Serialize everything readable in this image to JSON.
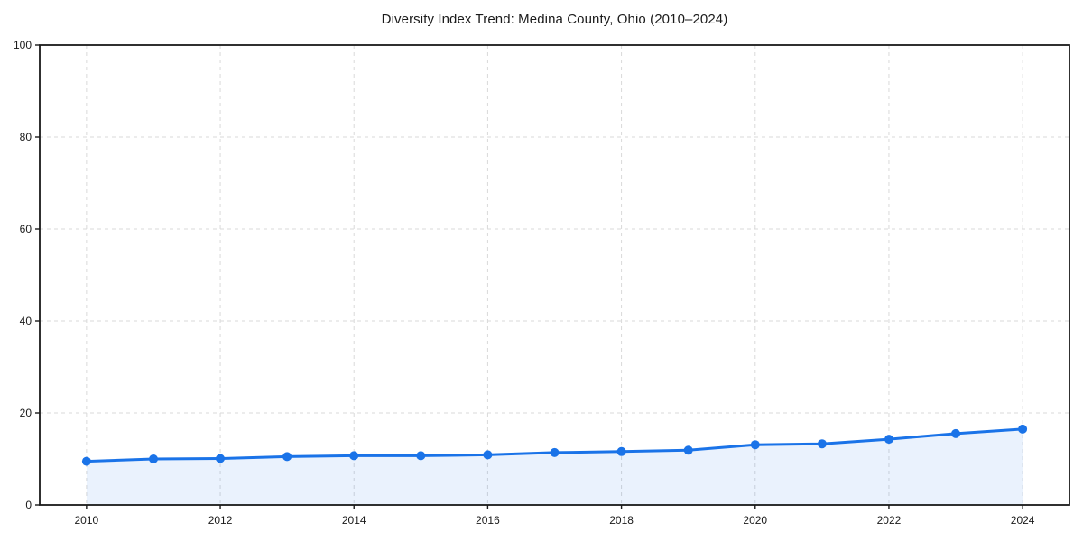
{
  "chart_data": {
    "type": "line",
    "title": "Diversity Index Trend: Medina County, Ohio (2010–2024)",
    "xlabel": "",
    "ylabel": "",
    "x": [
      2010,
      2011,
      2012,
      2013,
      2014,
      2015,
      2016,
      2017,
      2018,
      2019,
      2020,
      2021,
      2022,
      2023,
      2024
    ],
    "series": [
      {
        "name": "Diversity Index",
        "values": [
          9.5,
          10.0,
          10.1,
          10.5,
          10.7,
          10.7,
          10.9,
          11.4,
          11.6,
          11.9,
          13.1,
          13.3,
          14.3,
          15.5,
          16.5
        ]
      }
    ],
    "xlim": [
      2009.3,
      2024.7
    ],
    "ylim": [
      0,
      100
    ],
    "xticks": [
      2010,
      2012,
      2014,
      2016,
      2018,
      2020,
      2022,
      2024
    ],
    "yticks": [
      0,
      20,
      40,
      60,
      80,
      100
    ],
    "grid": true,
    "grid_style": "dashed",
    "legend": "none",
    "line_color": "#1a73e8",
    "marker": "circle",
    "area_fill": true,
    "fill_color": "#1a73e8",
    "fill_opacity": 0.09
  }
}
